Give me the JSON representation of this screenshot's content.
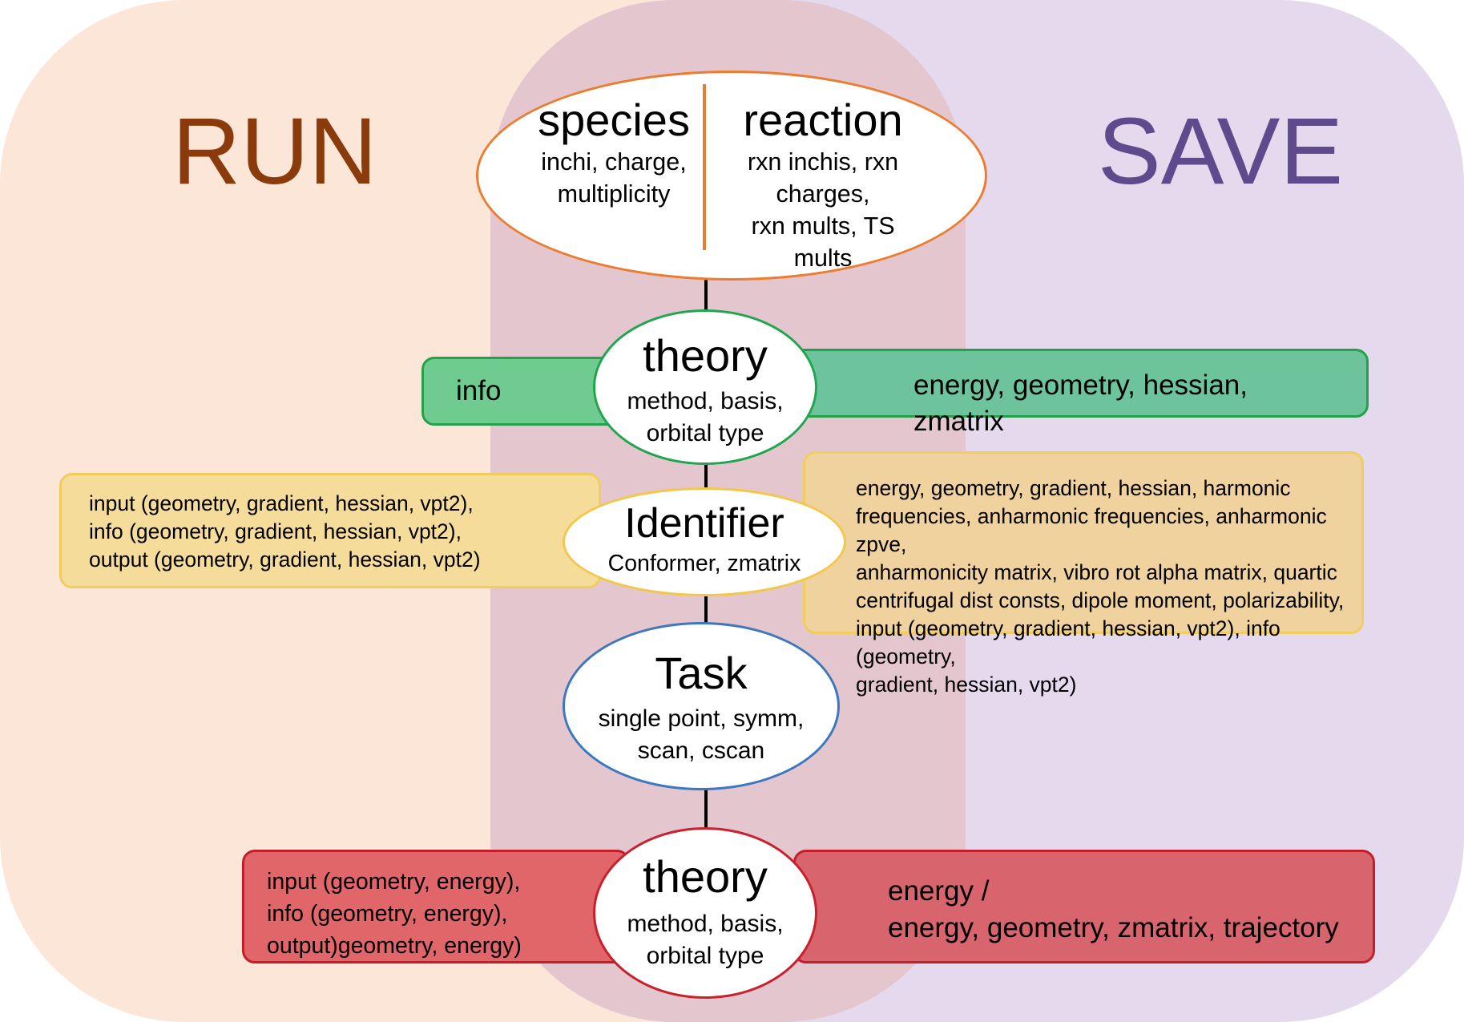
{
  "regions": {
    "run_label": "RUN",
    "save_label": "SAVE"
  },
  "colors": {
    "run_background": "#fbe6d8",
    "save_background": "#e5d9ee",
    "overlap_background": "#e4c4cc",
    "run_text": "#8b3b0b",
    "save_text": "#5e4a8d",
    "species_border": "#ec7c30",
    "theory_border": "#21a54f",
    "identifier_border": "#f4c64a",
    "task_border": "#3d78be",
    "theory_bottom_border": "#c9202e"
  },
  "nodes": {
    "species": {
      "title": "species",
      "subtitle": "inchi, charge,\nmultiplicity"
    },
    "reaction": {
      "title": "reaction",
      "subtitle": "rxn inchis, rxn\ncharges,\nrxn mults, TS\nmults"
    },
    "theory_top": {
      "title": "theory",
      "subtitle": "method, basis,\norbital type"
    },
    "identifier": {
      "title": "Identifier",
      "subtitle": "Conformer, zmatrix"
    },
    "task": {
      "title": "Task",
      "subtitle": "single point, symm,\nscan, cscan"
    },
    "theory_bottom": {
      "title": "theory",
      "subtitle": "method, basis,\norbital type"
    }
  },
  "bars": {
    "theory_run": "info",
    "theory_save": "energy, geometry, hessian,\nzmatrix",
    "identifier_run": "input (geometry, gradient, hessian, vpt2),\ninfo (geometry, gradient, hessian, vpt2),\noutput (geometry, gradient, hessian, vpt2)",
    "identifier_save": "energy, geometry, gradient, hessian, harmonic\nfrequencies, anharmonic frequencies, anharmonic zpve,\nanharmonicity matrix, vibro rot alpha matrix, quartic\ncentrifugal dist consts, dipole moment, polarizability,\ninput (geometry, gradient, hessian, vpt2), info (geometry,\ngradient, hessian, vpt2)",
    "theory_bottom_run": "input (geometry, energy),\ninfo (geometry, energy),\noutput)geometry, energy)",
    "theory_bottom_save": "energy /\nenergy, geometry,  zmatrix, trajectory"
  }
}
